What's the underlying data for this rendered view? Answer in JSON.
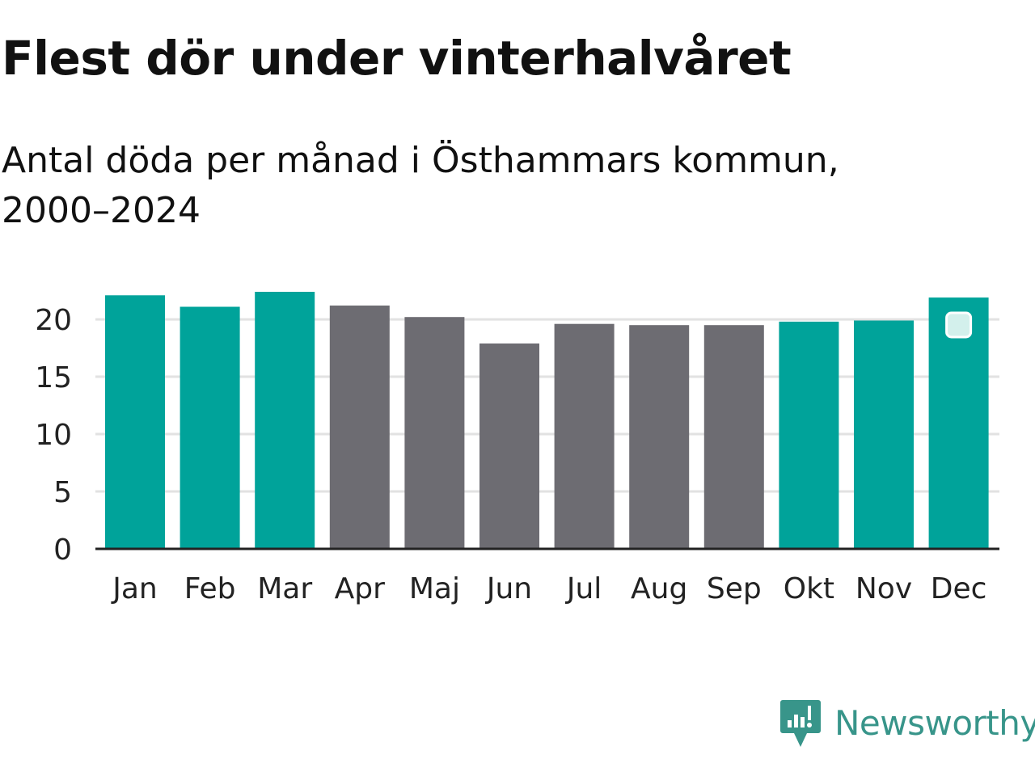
{
  "title": "Flest dör under vinterhalvåret",
  "subtitle": "Antal döda per månad i Östhammars kommun, 2000–2024",
  "brand": "Newsworthy",
  "colors": {
    "winter": "#00a39a",
    "summer": "#6d6c72",
    "grid": "#e2e2e2",
    "axis": "#222222",
    "brand": "#38958a"
  },
  "chart_data": {
    "type": "bar",
    "title": "Flest dör under vinterhalvåret",
    "subtitle": "Antal döda per månad i Östhammars kommun, 2000–2024",
    "xlabel": "",
    "ylabel": "",
    "categories": [
      "Jan",
      "Feb",
      "Mar",
      "Apr",
      "Maj",
      "Jun",
      "Jul",
      "Aug",
      "Sep",
      "Okt",
      "Nov",
      "Dec"
    ],
    "values": [
      22.1,
      21.1,
      22.4,
      21.2,
      20.2,
      17.9,
      19.6,
      19.5,
      19.5,
      19.8,
      19.9,
      21.9
    ],
    "groups": [
      "winter",
      "winter",
      "winter",
      "summer",
      "summer",
      "summer",
      "summer",
      "summer",
      "summer",
      "winter",
      "winter",
      "winter"
    ],
    "ylim": [
      0,
      22.4
    ],
    "yticks": [
      0,
      5,
      10,
      15,
      20
    ],
    "grid": true,
    "legend": "none"
  }
}
